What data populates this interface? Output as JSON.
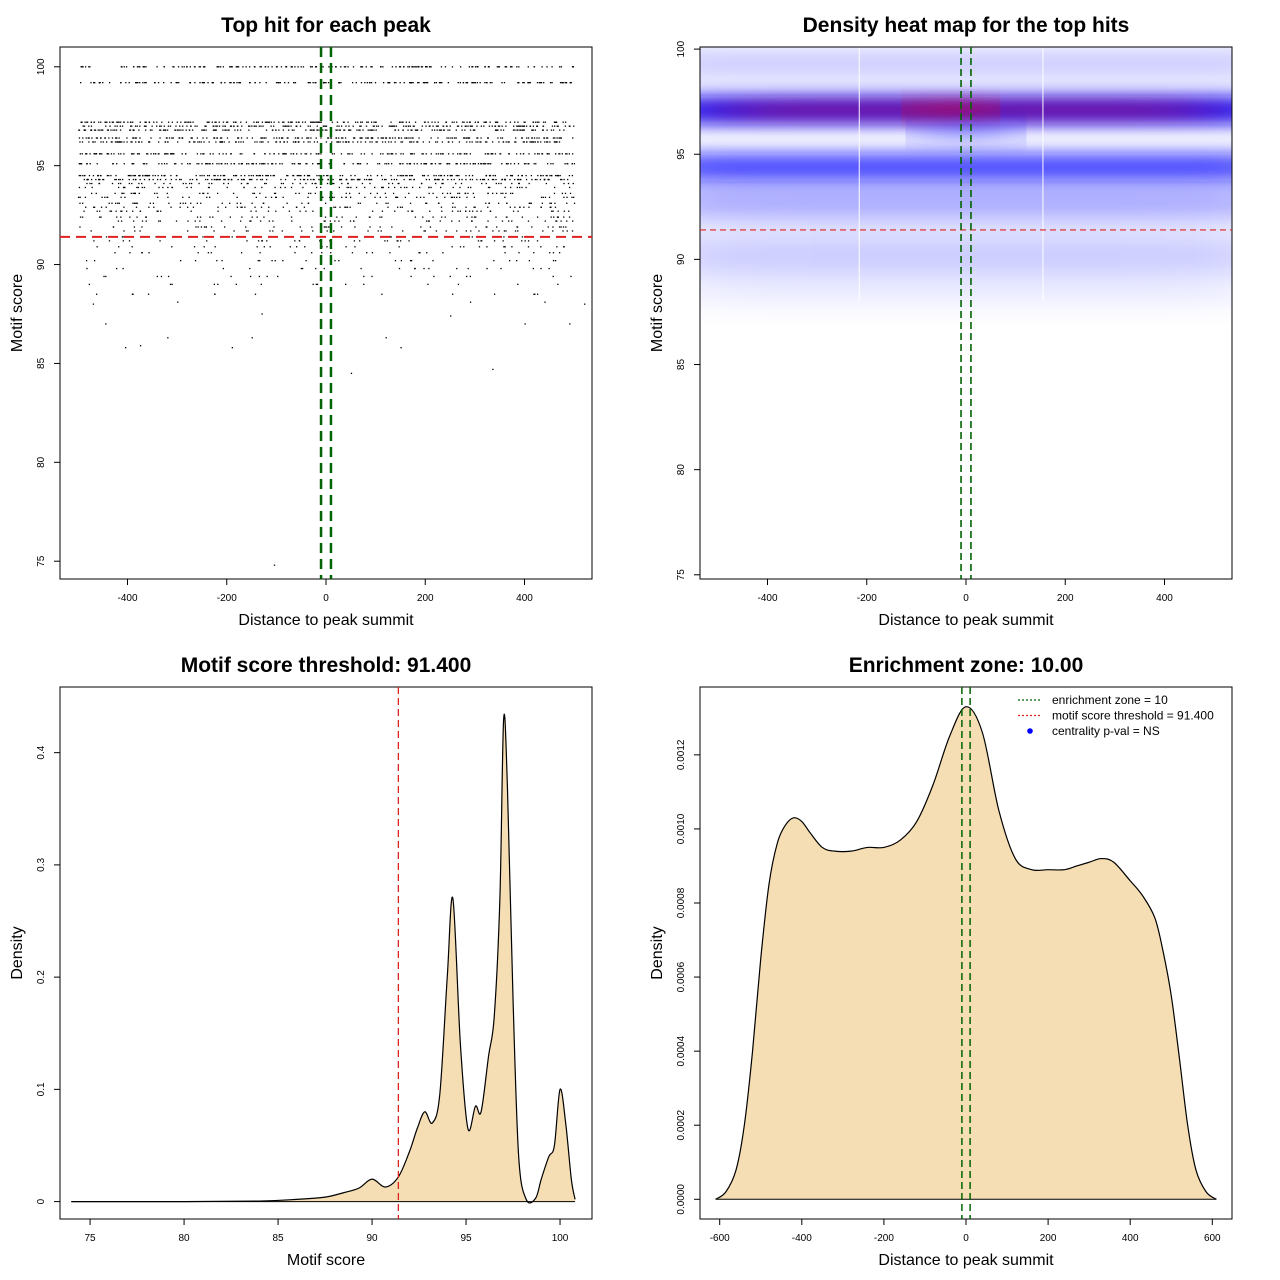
{
  "chart_data": [
    {
      "id": "scatter",
      "type": "scatter",
      "title": "Top hit for each peak",
      "xlabel": "Distance to peak summit",
      "ylabel": "Motif score",
      "xlim": [
        -536,
        536
      ],
      "ylim": [
        74.1,
        101.0
      ],
      "xticks": [
        -400,
        -200,
        0,
        200,
        400
      ],
      "yticks": [
        75,
        80,
        85,
        90,
        95,
        100
      ],
      "point_color": "#000000",
      "x_range_of_points": [
        -500,
        500
      ],
      "dense_score_rows": [
        100.0,
        99.2,
        97.2,
        97.0,
        96.8,
        96.4,
        96.2,
        95.6,
        95.1,
        94.5,
        94.3
      ],
      "sparse_score_rows": [
        94.1,
        93.9,
        93.6,
        93.4,
        93.1,
        92.9,
        92.7,
        92.4,
        92.2,
        91.9,
        91.7,
        91.4,
        91.2,
        90.9,
        90.6,
        90.2,
        89.8,
        89.4,
        89.0,
        88.5
      ],
      "outlier_points": [
        [
          -470,
          88.0
        ],
        [
          -445,
          87.0
        ],
        [
          -405,
          85.8
        ],
        [
          -375,
          85.9
        ],
        [
          -320,
          86.3
        ],
        [
          -190,
          85.8
        ],
        [
          -150,
          86.3
        ],
        [
          -105,
          74.8
        ],
        [
          50,
          84.5
        ],
        [
          120,
          86.3
        ],
        [
          150,
          85.8
        ],
        [
          335,
          84.7
        ],
        [
          250,
          87.4
        ],
        [
          400,
          87.0
        ],
        [
          490,
          87.0
        ],
        [
          -300,
          88.1
        ],
        [
          -130,
          87.5
        ],
        [
          290,
          88.1
        ],
        [
          440,
          88.1
        ],
        [
          520,
          88.0
        ]
      ],
      "threshold_hline": 91.4,
      "threshold_color": "#dd2222",
      "enrichment_vlines": [
        -10,
        10
      ],
      "zone_color": "#006400"
    },
    {
      "id": "heatmap",
      "type": "heatmap",
      "title": "Density heat map for the top hits",
      "xlabel": "Distance to peak summit",
      "ylabel": "Motif score",
      "xlim": [
        -536,
        536
      ],
      "ylim": [
        74.8,
        100.1
      ],
      "xticks": [
        -400,
        -200,
        0,
        200,
        400
      ],
      "yticks": [
        75,
        80,
        85,
        90,
        95,
        100
      ],
      "bands": [
        {
          "score": 97.1,
          "intensity": 1.0
        },
        {
          "score": 94.4,
          "intensity": 0.72
        },
        {
          "score": 92.8,
          "intensity": 0.25
        },
        {
          "score": 99.3,
          "intensity": 0.18
        },
        {
          "score": 90.2,
          "intensity": 0.1
        }
      ],
      "color_scale": [
        "#ffffff",
        "#0000ff",
        "#ff0000"
      ],
      "threshold_hline": 91.4,
      "threshold_color": "#dd2222",
      "enrichment_vlines": [
        -10,
        10
      ],
      "zone_color": "#006400"
    },
    {
      "id": "score_density",
      "type": "area",
      "title": "Motif score threshold: 91.400",
      "xlabel": "Motif score",
      "ylabel": "Density",
      "xlim": [
        73.4,
        101.7
      ],
      "ylim": [
        -0.0155,
        0.4585
      ],
      "xticks": [
        75,
        80,
        85,
        90,
        95,
        100
      ],
      "yticks": [
        0.0,
        0.1,
        0.2,
        0.3,
        0.4
      ],
      "x": [
        74.0,
        80.0,
        84.0,
        86.0,
        87.5,
        88.5,
        89.3,
        90.0,
        90.7,
        91.4,
        92.0,
        92.4,
        92.8,
        93.2,
        93.6,
        94.0,
        94.3,
        94.7,
        95.1,
        95.5,
        95.8,
        96.2,
        96.5,
        96.8,
        97.0,
        97.2,
        97.5,
        97.8,
        98.2,
        98.7,
        99.0,
        99.4,
        99.7,
        100.0,
        100.3,
        100.6,
        100.8
      ],
      "y": [
        0.0,
        0.0,
        0.0005,
        0.002,
        0.004,
        0.008,
        0.012,
        0.02,
        0.013,
        0.022,
        0.045,
        0.065,
        0.08,
        0.07,
        0.095,
        0.2,
        0.27,
        0.14,
        0.065,
        0.085,
        0.08,
        0.13,
        0.165,
        0.27,
        0.43,
        0.37,
        0.18,
        0.04,
        0.002,
        0.003,
        0.02,
        0.04,
        0.05,
        0.1,
        0.07,
        0.02,
        0.002
      ],
      "fill_color": "#f5deb3",
      "threshold_vline": 91.4,
      "threshold_color": "#dd2222"
    },
    {
      "id": "distance_density",
      "type": "area",
      "title": "Enrichment zone: 10.00",
      "xlabel": "Distance to peak summit",
      "ylabel": "Density",
      "xlim": [
        -648,
        648
      ],
      "ylim": [
        -5.32e-05,
        0.0013832
      ],
      "xticks": [
        -600,
        -400,
        -200,
        0,
        200,
        400,
        600
      ],
      "yticks": [
        0.0,
        0.0002,
        0.0004,
        0.0006,
        0.0008,
        0.001,
        0.0012
      ],
      "ytick_labels": [
        "0.0000",
        "0.0002",
        "0.0004",
        "0.0006",
        "0.0008",
        "0.0010",
        "0.0012"
      ],
      "x": [
        -610,
        -585,
        -560,
        -540,
        -520,
        -500,
        -480,
        -460,
        -440,
        -420,
        -400,
        -380,
        -350,
        -320,
        -280,
        -240,
        -200,
        -160,
        -120,
        -80,
        -40,
        0,
        40,
        80,
        120,
        160,
        200,
        240,
        270,
        300,
        330,
        360,
        400,
        430,
        460,
        480,
        500,
        520,
        540,
        560,
        585,
        610
      ],
      "y": [
        0.0,
        2e-05,
        8e-05,
        0.0002,
        0.0004,
        0.00065,
        0.00085,
        0.00096,
        0.00101,
        0.00103,
        0.00102,
        0.00099,
        0.00095,
        0.00094,
        0.00094,
        0.00095,
        0.00095,
        0.00097,
        0.00102,
        0.00112,
        0.00125,
        0.00133,
        0.00126,
        0.00105,
        0.00092,
        0.00089,
        0.00089,
        0.00089,
        0.0009,
        0.00091,
        0.00092,
        0.00091,
        0.00086,
        0.00082,
        0.00076,
        0.00067,
        0.00055,
        0.00038,
        0.0002,
        8e-05,
        2e-05,
        0.0
      ],
      "fill_color": "#f5deb3",
      "enrichment_vlines": [
        -10,
        10
      ],
      "zone_color": "#006400",
      "legend": {
        "position": "top-right",
        "entries": [
          {
            "label": "enrichment zone = 10",
            "style": "dotted-line",
            "color": "#006400"
          },
          {
            "label": "motif score threshold = 91.400",
            "style": "dotted-line",
            "color": "#dd2222"
          },
          {
            "label": "centrality p-val = NS",
            "style": "point",
            "color": "#0000ff"
          }
        ]
      }
    }
  ]
}
